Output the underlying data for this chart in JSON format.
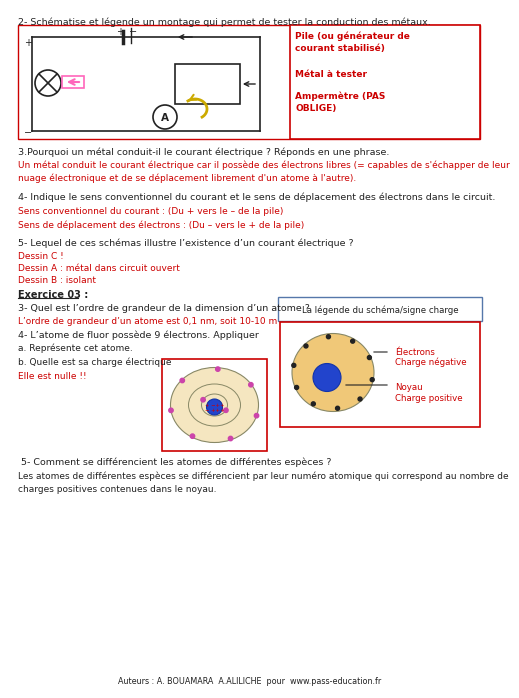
{
  "bg_color": "#ffffff",
  "BLACK": "#222222",
  "RED": "#cc0000",
  "title_q2": "2- Schématise et légende un montage qui permet de tester la conduction des métaux.",
  "q3_label": "3.Pourquoi un métal conduit-il le courant électrique ? Réponds en une phrase.",
  "q3_answer": "Un métal conduit le courant électrique car il possède des électrons libres (= capables de s'échapper de leur\nnuage électronique et de se déplacement librement d'un atome à l'autre).",
  "q4_label": "4- Indique le sens conventionnel du courant et le sens de déplacement des électrons dans le circuit.",
  "q4a_answer": "Sens conventionnel du courant : (Du + vers le – de la pile)",
  "q4b_answer": "Sens de déplacement des électrons : (Du – vers le + de la pile)",
  "q5_label": "5- Lequel de ces schémas illustre l’existence d’un courant électrique ?",
  "q5a_answer": "Dessin C !",
  "q5b_answer": "Dessin A : métal dans circuit ouvert",
  "q5c_answer": "Dessin B : isolant",
  "ex03_label": "Exercice 03 :",
  "ex03_q3_label": "3- Quel est l’ordre de grandeur de la dimension d’un atome ?",
  "legend_box_label": "La légende du schéma/signe charge",
  "ex03_q3_answer": "L’ordre de grandeur d’un atome est 0,1 nm, soit 10-10 m",
  "ex03_q4_label": "4- L’atome de fluor possède 9 électrons. Appliquer",
  "ex03_q4a_label": "a. Représente cet atome.",
  "ex03_q4b_label": "b. Quelle est sa charge électrique",
  "ex03_q4b_answer": "Elle est nulle !!",
  "ex03_q5_label": " 5- Comment se différencient les atomes de différentes espèces ?",
  "ex03_q5_answer": "Les atomes de différentes espèces se différencient par leur numéro atomique qui correspond au nombre de\ncharges positives contenues dans le noyau.",
  "legend_electrons": "Électrons",
  "legend_charge_neg": "Charge négative",
  "legend_noyau": "Noyau",
  "legend_charge_pos": "Charge positive",
  "footer": "Auteurs : A. BOUAMARA  A.ALILICHE  pour  www.pass-education.fr"
}
